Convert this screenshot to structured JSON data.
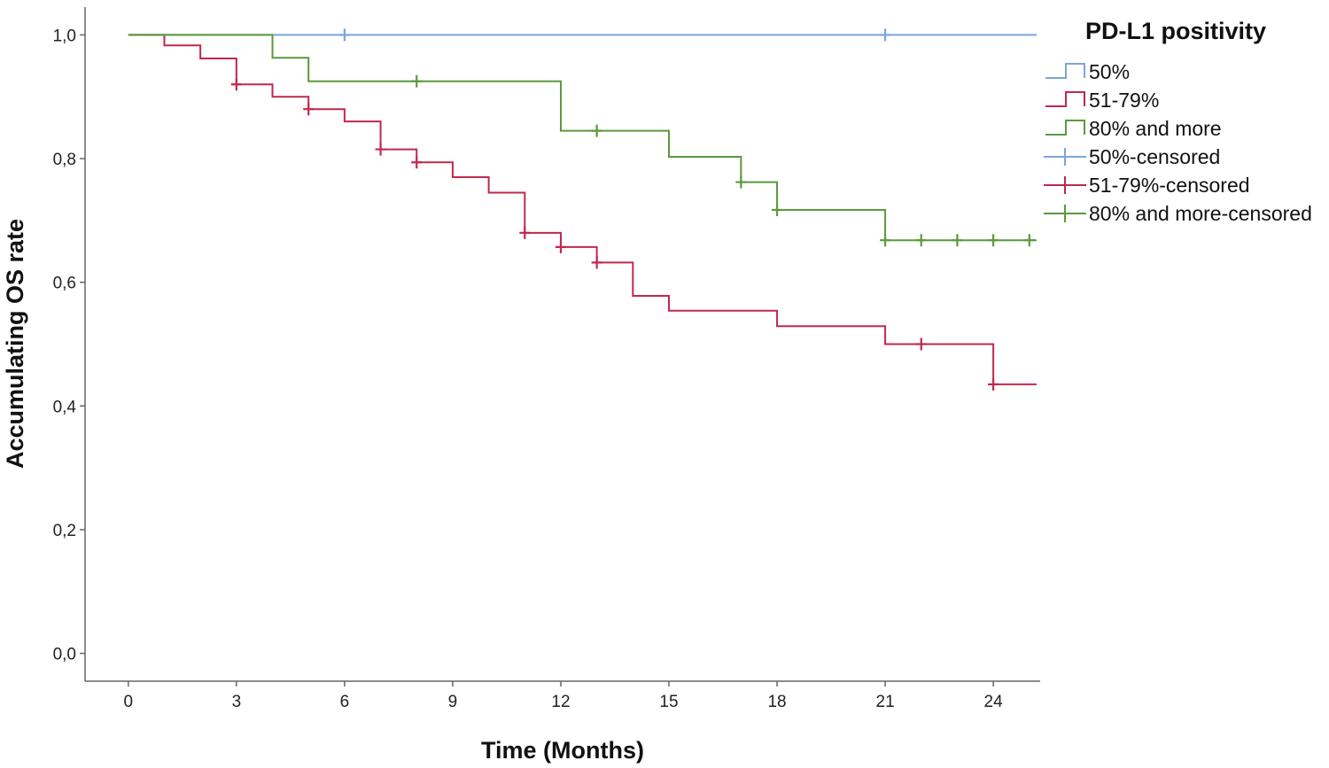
{
  "chart_data": {
    "type": "line",
    "xlabel": "Time (Months)",
    "ylabel": "Accumulating OS rate",
    "xlim": [
      -1.2,
      25.3
    ],
    "ylim": [
      -0.045,
      1.045
    ],
    "x_ticks": [
      0,
      3,
      6,
      9,
      12,
      15,
      18,
      21,
      24
    ],
    "x_tick_labels": [
      "0",
      "3",
      "6",
      "9",
      "12",
      "15",
      "18",
      "21",
      "24"
    ],
    "y_ticks": [
      0,
      0.2,
      0.4,
      0.6,
      0.8,
      1.0
    ],
    "y_tick_labels": [
      "0,0",
      "0,2",
      "0,4",
      "0,6",
      "0,8",
      "1,0"
    ],
    "grid": false,
    "legend": {
      "title": "PD-L1 positivity",
      "position": "top-right",
      "entries": [
        {
          "label": "50%",
          "series": "s1",
          "kind": "step"
        },
        {
          "label": "51-79%",
          "series": "s2",
          "kind": "step"
        },
        {
          "label": "80% and more",
          "series": "s3",
          "kind": "step"
        },
        {
          "label": "50%-censored",
          "series": "s1",
          "kind": "censor"
        },
        {
          "label": "51-79%-censored",
          "series": "s2",
          "kind": "censor"
        },
        {
          "label": "80% and more-censored",
          "series": "s3",
          "kind": "censor"
        }
      ]
    },
    "series": [
      {
        "id": "s1",
        "name": "50%",
        "color": "#7aa6d8",
        "steps": [
          [
            0,
            1.0
          ]
        ],
        "end_x": 25.2,
        "censored": [
          [
            6,
            1.0
          ],
          [
            21,
            1.0
          ]
        ]
      },
      {
        "id": "s2",
        "name": "51-79%",
        "color": "#c0284f",
        "steps": [
          [
            0,
            1.0
          ],
          [
            1,
            0.983
          ],
          [
            2,
            0.962
          ],
          [
            3,
            0.92
          ],
          [
            4,
            0.9
          ],
          [
            5,
            0.88
          ],
          [
            6,
            0.86
          ],
          [
            7,
            0.815
          ],
          [
            8,
            0.794
          ],
          [
            9,
            0.77
          ],
          [
            10,
            0.745
          ],
          [
            11,
            0.68
          ],
          [
            12,
            0.657
          ],
          [
            13,
            0.632
          ],
          [
            14,
            0.578
          ],
          [
            15,
            0.554
          ],
          [
            18,
            0.529
          ],
          [
            21,
            0.5
          ],
          [
            24,
            0.435
          ]
        ],
        "end_x": 25.2,
        "censored": [
          [
            3,
            0.92
          ],
          [
            5,
            0.88
          ],
          [
            7,
            0.815
          ],
          [
            8,
            0.794
          ],
          [
            11,
            0.68
          ],
          [
            12,
            0.657
          ],
          [
            13,
            0.632
          ],
          [
            22,
            0.5
          ],
          [
            24,
            0.435
          ]
        ]
      },
      {
        "id": "s3",
        "name": "80% and more",
        "color": "#5a9a3c",
        "steps": [
          [
            0,
            1.0
          ],
          [
            4,
            0.963
          ],
          [
            5,
            0.925
          ],
          [
            12,
            0.845
          ],
          [
            15,
            0.803
          ],
          [
            17,
            0.762
          ],
          [
            18,
            0.717
          ],
          [
            21,
            0.668
          ]
        ],
        "end_x": 25.2,
        "censored": [
          [
            8,
            0.925
          ],
          [
            13,
            0.845
          ],
          [
            17,
            0.762
          ],
          [
            18,
            0.717
          ],
          [
            21,
            0.668
          ],
          [
            22,
            0.668
          ],
          [
            23,
            0.668
          ],
          [
            24,
            0.668
          ],
          [
            25,
            0.668
          ]
        ]
      }
    ]
  }
}
